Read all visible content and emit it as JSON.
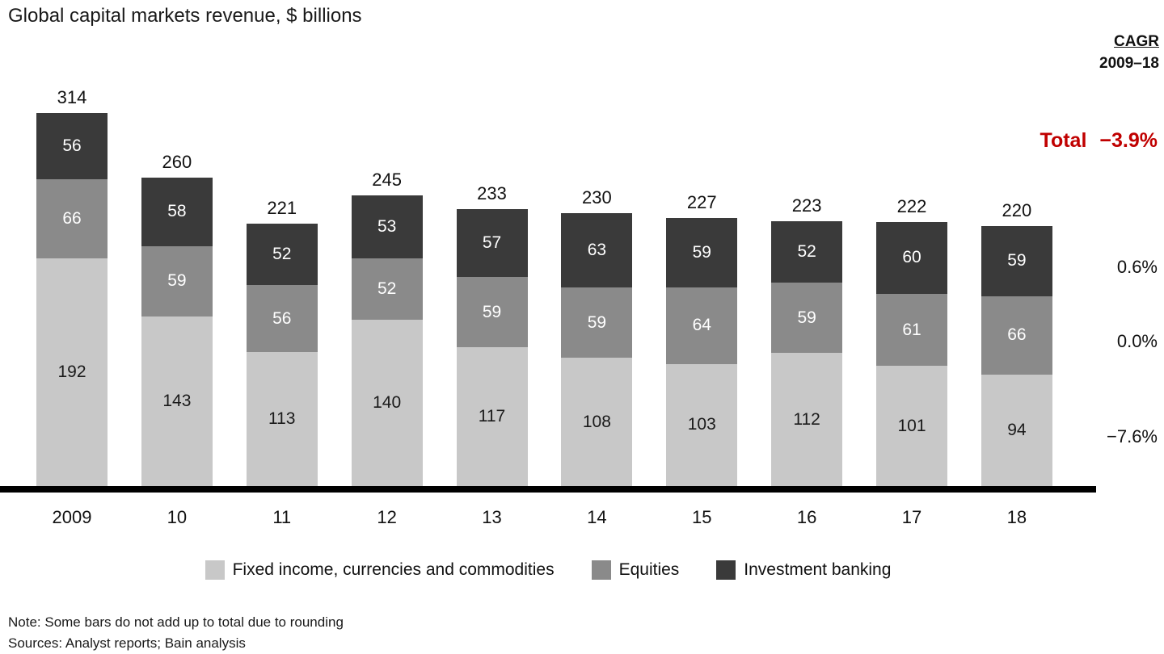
{
  "title": "Global capital markets revenue, $ billions",
  "cagr": {
    "header_line1": "CAGR",
    "header_line2": "2009–18",
    "total_label": "Total",
    "total_value": "−3.9%",
    "total_color": "#c00000",
    "segment_values": [
      {
        "series": "Investment banking",
        "value": "0.6%"
      },
      {
        "series": "Equities",
        "value": "0.0%"
      },
      {
        "series": "Fixed income, currencies and commodities",
        "value": "−7.6%"
      }
    ]
  },
  "colors": {
    "ficc": "#c8c8c8",
    "equities": "#8a8a8a",
    "ib": "#3a3a3a",
    "total_red": "#c00000"
  },
  "legend": [
    {
      "key": "ficc",
      "label": "Fixed income, currencies and commodities"
    },
    {
      "key": "equities",
      "label": "Equities"
    },
    {
      "key": "ib",
      "label": "Investment banking"
    }
  ],
  "notes": [
    "Note: Some bars do not add up to total due to rounding",
    "Sources: Analyst reports; Bain analysis"
  ],
  "chart_data": {
    "type": "bar",
    "stacked": true,
    "title": "Global capital markets revenue, $ billions",
    "categories": [
      "2009",
      "10",
      "11",
      "12",
      "13",
      "14",
      "15",
      "16",
      "17",
      "18"
    ],
    "series": [
      {
        "name": "Fixed income, currencies and commodities",
        "key": "ficc",
        "values": [
          192,
          143,
          113,
          140,
          117,
          108,
          103,
          112,
          101,
          94
        ]
      },
      {
        "name": "Equities",
        "key": "equities",
        "values": [
          66,
          59,
          56,
          52,
          59,
          59,
          64,
          59,
          61,
          66
        ]
      },
      {
        "name": "Investment banking",
        "key": "ib",
        "values": [
          56,
          58,
          52,
          53,
          57,
          63,
          59,
          52,
          60,
          59
        ]
      }
    ],
    "totals": [
      314,
      260,
      221,
      245,
      233,
      230,
      227,
      223,
      222,
      220
    ],
    "ylabel": "",
    "xlabel": "",
    "legend_position": "bottom",
    "grid": false
  }
}
